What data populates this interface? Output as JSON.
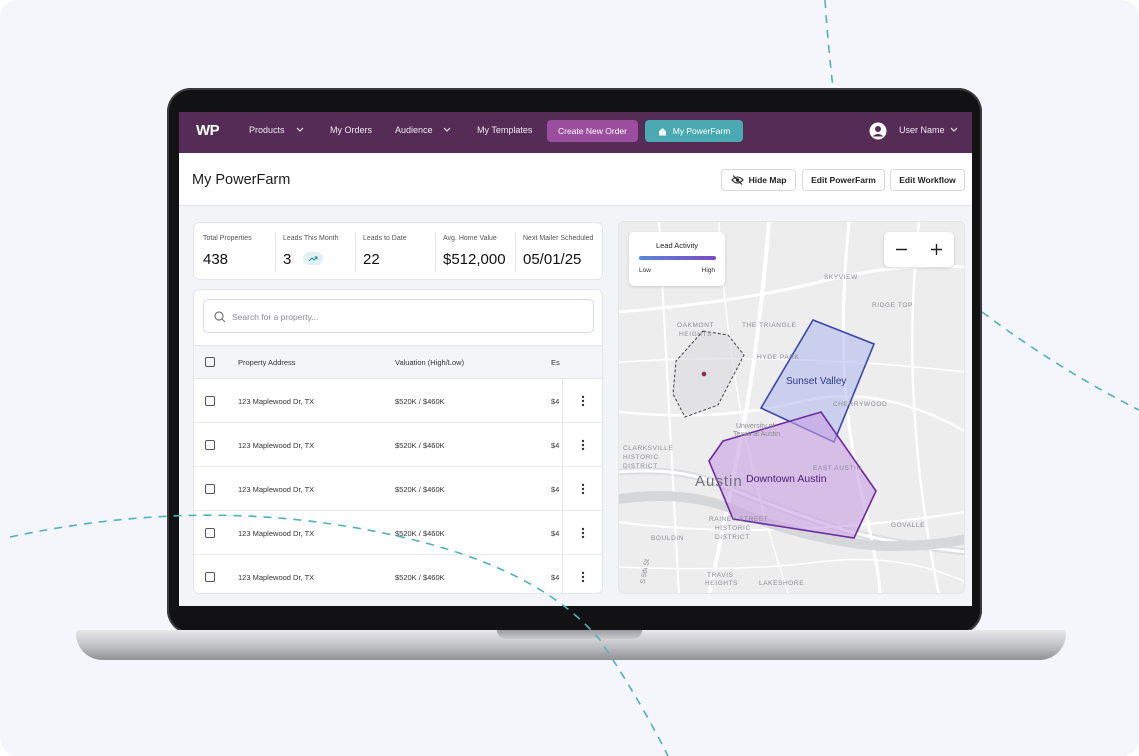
{
  "nav": {
    "logo": "WP",
    "items": [
      "Products",
      "My Orders",
      "Audience",
      "My Templates"
    ],
    "create_button": "Create New Order",
    "farm_button": "My PowerFarm",
    "user": "User Name"
  },
  "header": {
    "title": "My PowerFarm",
    "actions": [
      "Hide Map",
      "Edit PowerFarm",
      "Edit Workflow"
    ]
  },
  "stats": [
    {
      "label": "Total Properties",
      "value": "438"
    },
    {
      "label": "Leads This Month",
      "value": "3"
    },
    {
      "label": "Leads to Date",
      "value": "22"
    },
    {
      "label": "Avg. Home Value",
      "value": "$512,000"
    },
    {
      "label": "Next Mailer Scheduled",
      "value": "05/01/25"
    }
  ],
  "search": {
    "placeholder": "Search for a property..."
  },
  "table": {
    "columns": [
      "Property Address",
      "Valuation (High/Low)",
      "Es"
    ],
    "rows": [
      [
        "123 Maplewood Dr, TX",
        "$520K / $460K",
        "$4"
      ],
      [
        "123 Maplewood Dr, TX",
        "$520K / $460K",
        "$4"
      ],
      [
        "123 Maplewood Dr, TX",
        "$520K / $460K",
        "$4"
      ],
      [
        "123 Maplewood Dr, TX",
        "$520K / $460K",
        "$4"
      ],
      [
        "123 Maplewood Dr, TX",
        "$520K / $460K",
        "$4"
      ]
    ]
  },
  "map": {
    "legend": {
      "title": "Lead Activity",
      "low": "Low",
      "high": "High"
    },
    "labels": [
      "SKYVIEW",
      "RIDGE TOP",
      "OAKMONT",
      "HEIGHTS",
      "THE TRIANGLE",
      "HYDE PARK",
      "Sunset Valley",
      "CHERRYWOOD",
      "University of",
      "Texas at Austin",
      "CLARKSVILLE",
      "HISTORIC",
      "DISTRICT",
      "EAST AUSTIN",
      "Austin",
      "Downtown Austin",
      "RAINEY STREET",
      "HISTORIC",
      "DISTRICT",
      "BOULDIN",
      "GOVALLE",
      "TRAVIS",
      "HEIGHTS",
      "LAKESHORE",
      "S 5th St"
    ]
  }
}
